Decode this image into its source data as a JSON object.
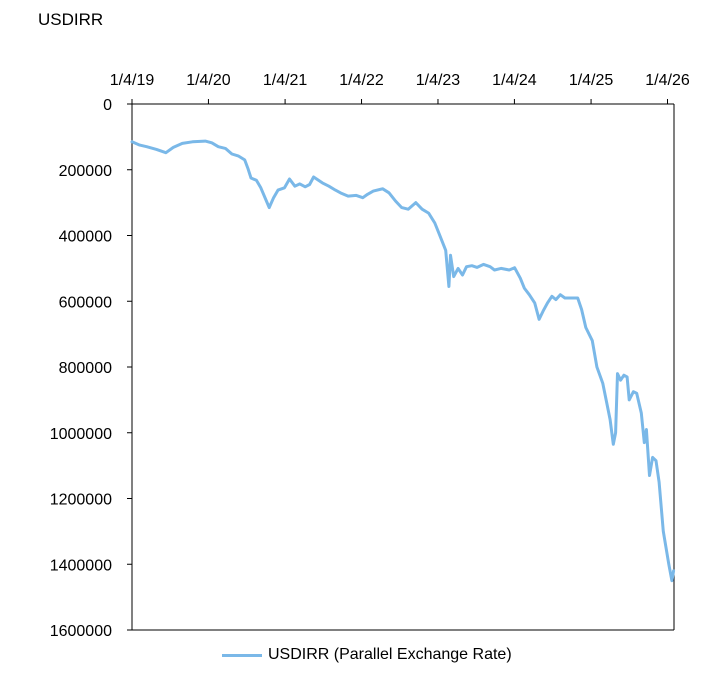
{
  "chart_data": {
    "type": "line",
    "title": "USDIRR",
    "xlabel": "",
    "ylabel": "",
    "y_inverted": true,
    "ylim": [
      0,
      1600000
    ],
    "yticks": [
      "0",
      "200000",
      "400000",
      "600000",
      "800000",
      "1000000",
      "1200000",
      "1400000",
      "1600000"
    ],
    "xticks": [
      "1/4/19",
      "1/4/20",
      "1/4/21",
      "1/4/22",
      "1/4/23",
      "1/4/24",
      "1/4/25",
      "1/4/26"
    ],
    "xlim": [
      "2019-01-04",
      "2026-02-04"
    ],
    "legend_position": "bottom",
    "color": "#7ab8e8",
    "series": [
      {
        "name": "USDIRR (Parallel Exchange Rate)",
        "points": [
          [
            "2019-01-04",
            115000
          ],
          [
            "2019-02-10",
            125000
          ],
          [
            "2019-03-15",
            130000
          ],
          [
            "2019-05-01",
            138000
          ],
          [
            "2019-06-15",
            148000
          ],
          [
            "2019-07-20",
            132000
          ],
          [
            "2019-09-01",
            120000
          ],
          [
            "2019-10-20",
            115000
          ],
          [
            "2019-12-20",
            113000
          ],
          [
            "2020-01-20",
            118000
          ],
          [
            "2020-02-20",
            130000
          ],
          [
            "2020-03-25",
            135000
          ],
          [
            "2020-04-25",
            152000
          ],
          [
            "2020-05-25",
            158000
          ],
          [
            "2020-06-25",
            170000
          ],
          [
            "2020-07-10",
            195000
          ],
          [
            "2020-07-25",
            225000
          ],
          [
            "2020-08-20",
            232000
          ],
          [
            "2020-09-10",
            255000
          ],
          [
            "2020-10-10",
            300000
          ],
          [
            "2020-10-20",
            315000
          ],
          [
            "2020-11-10",
            285000
          ],
          [
            "2020-12-01",
            262000
          ],
          [
            "2021-01-01",
            255000
          ],
          [
            "2021-01-25",
            228000
          ],
          [
            "2021-02-20",
            250000
          ],
          [
            "2021-03-15",
            243000
          ],
          [
            "2021-04-10",
            252000
          ],
          [
            "2021-05-01",
            245000
          ],
          [
            "2021-05-20",
            222000
          ],
          [
            "2021-07-01",
            240000
          ],
          [
            "2021-08-01",
            250000
          ],
          [
            "2021-09-01",
            262000
          ],
          [
            "2021-10-01",
            272000
          ],
          [
            "2021-11-01",
            280000
          ],
          [
            "2021-12-10",
            278000
          ],
          [
            "2022-01-10",
            285000
          ],
          [
            "2022-02-01",
            275000
          ],
          [
            "2022-03-01",
            265000
          ],
          [
            "2022-04-15",
            258000
          ],
          [
            "2022-05-15",
            270000
          ],
          [
            "2022-06-15",
            295000
          ],
          [
            "2022-07-15",
            315000
          ],
          [
            "2022-08-15",
            320000
          ],
          [
            "2022-09-20",
            300000
          ],
          [
            "2022-10-20",
            320000
          ],
          [
            "2022-11-20",
            332000
          ],
          [
            "2022-12-20",
            362000
          ],
          [
            "2023-01-10",
            395000
          ],
          [
            "2023-02-10",
            445000
          ],
          [
            "2023-02-25",
            555000
          ],
          [
            "2023-03-05",
            460000
          ],
          [
            "2023-03-20",
            525000
          ],
          [
            "2023-04-10",
            500000
          ],
          [
            "2023-05-01",
            520000
          ],
          [
            "2023-05-20",
            495000
          ],
          [
            "2023-06-15",
            492000
          ],
          [
            "2023-07-10",
            497000
          ],
          [
            "2023-08-10",
            488000
          ],
          [
            "2023-09-10",
            495000
          ],
          [
            "2023-10-01",
            505000
          ],
          [
            "2023-11-01",
            500000
          ],
          [
            "2023-12-10",
            505000
          ],
          [
            "2024-01-05",
            498000
          ],
          [
            "2024-02-01",
            530000
          ],
          [
            "2024-02-20",
            560000
          ],
          [
            "2024-03-15",
            580000
          ],
          [
            "2024-04-10",
            605000
          ],
          [
            "2024-05-01",
            655000
          ],
          [
            "2024-05-20",
            630000
          ],
          [
            "2024-06-10",
            605000
          ],
          [
            "2024-07-01",
            585000
          ],
          [
            "2024-07-20",
            595000
          ],
          [
            "2024-08-10",
            580000
          ],
          [
            "2024-09-01",
            590000
          ],
          [
            "2024-10-01",
            590000
          ],
          [
            "2024-11-01",
            590000
          ],
          [
            "2024-11-20",
            625000
          ],
          [
            "2024-12-10",
            680000
          ],
          [
            "2025-01-10",
            720000
          ],
          [
            "2025-02-01",
            800000
          ],
          [
            "2025-03-01",
            850000
          ],
          [
            "2025-03-20",
            910000
          ],
          [
            "2025-04-05",
            960000
          ],
          [
            "2025-04-20",
            1035000
          ],
          [
            "2025-05-01",
            1000000
          ],
          [
            "2025-05-10",
            820000
          ],
          [
            "2025-05-25",
            840000
          ],
          [
            "2025-06-10",
            825000
          ],
          [
            "2025-06-25",
            830000
          ],
          [
            "2025-07-05",
            900000
          ],
          [
            "2025-07-25",
            875000
          ],
          [
            "2025-08-10",
            880000
          ],
          [
            "2025-09-01",
            940000
          ],
          [
            "2025-09-15",
            1030000
          ],
          [
            "2025-09-25",
            990000
          ],
          [
            "2025-10-10",
            1130000
          ],
          [
            "2025-10-25",
            1075000
          ],
          [
            "2025-11-10",
            1085000
          ],
          [
            "2025-11-25",
            1150000
          ],
          [
            "2025-12-15",
            1300000
          ],
          [
            "2026-01-10",
            1400000
          ],
          [
            "2026-01-25",
            1450000
          ],
          [
            "2026-02-02",
            1420000
          ]
        ]
      }
    ]
  }
}
